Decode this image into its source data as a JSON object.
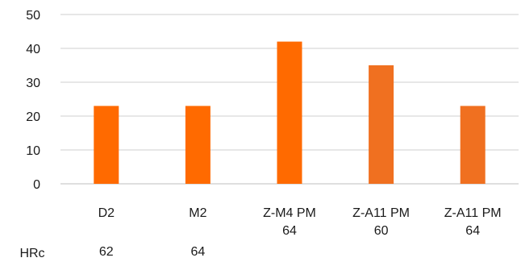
{
  "chart_data": {
    "type": "bar",
    "categories": [
      {
        "line1": "D2",
        "line2": ""
      },
      {
        "line1": "M2",
        "line2": ""
      },
      {
        "line1": "Z-M4 PM",
        "line2": "64"
      },
      {
        "line1": "Z-A11 PM",
        "line2": "60"
      },
      {
        "line1": "Z-A11 PM",
        "line2": "64"
      }
    ],
    "values": [
      23,
      23,
      42,
      35,
      23
    ],
    "bar_colors": [
      "#ff6a00",
      "#ff6a00",
      "#ff6a00",
      "#f07020",
      "#f07020"
    ],
    "ylim": [
      0,
      50
    ],
    "yticks": [
      "0",
      "10",
      "20",
      "30",
      "40",
      "50"
    ],
    "grid": true,
    "extra_row": {
      "label": "HRc",
      "values": [
        "62",
        "64",
        "",
        "",
        ""
      ]
    }
  }
}
